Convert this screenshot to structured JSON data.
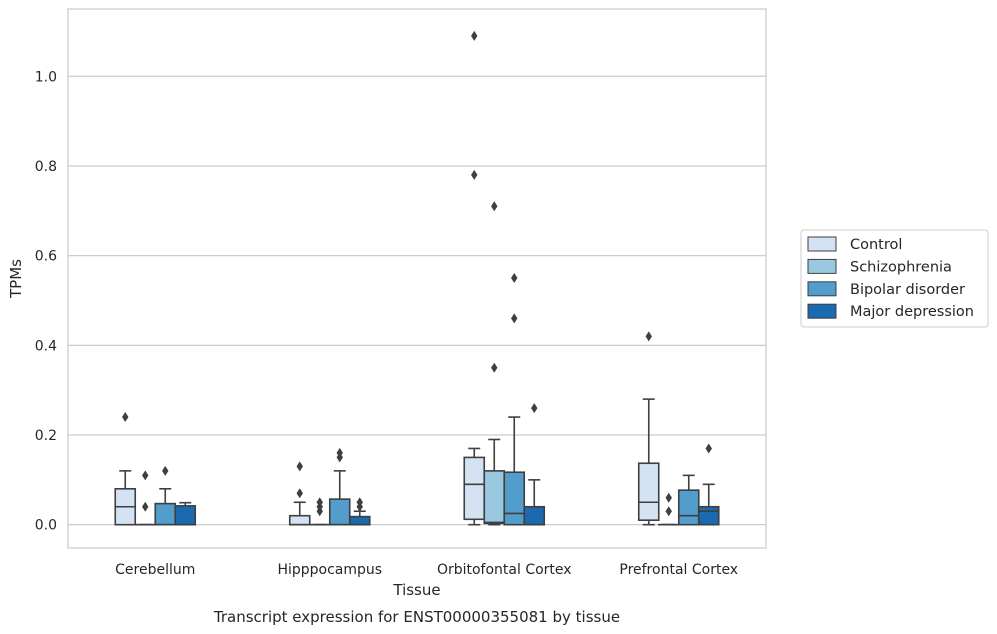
{
  "chart_data": {
    "type": "box",
    "title": "",
    "caption": "Transcript expression for ENST00000355081 by tissue",
    "xlabel": "Tissue",
    "ylabel": "TPMs",
    "ylim": [
      -0.052,
      1.15
    ],
    "yticks": [
      0.0,
      0.2,
      0.4,
      0.6,
      0.8,
      1.0
    ],
    "ytick_labels": [
      "0.0",
      "0.2",
      "0.4",
      "0.6",
      "0.8",
      "1.0"
    ],
    "grid": "horizontal",
    "legend_position": "right",
    "categories": [
      "Cerebellum",
      "Hipppocampus",
      "Orbitofontal Cortex",
      "Prefrontal Cortex"
    ],
    "series": [
      {
        "name": "Control",
        "color": "#d3e3f3",
        "boxes": [
          {
            "q1": 0.0,
            "median": 0.04,
            "q3": 0.08,
            "whislo": 0.0,
            "whishi": 0.12,
            "fliers": [
              0.24
            ]
          },
          {
            "q1": 0.0,
            "median": 0.0,
            "q3": 0.02,
            "whislo": 0.0,
            "whishi": 0.05,
            "fliers": [
              0.07,
              0.13
            ]
          },
          {
            "q1": 0.012,
            "median": 0.09,
            "q3": 0.15,
            "whislo": 0.0,
            "whishi": 0.17,
            "fliers": [
              0.78,
              1.09
            ]
          },
          {
            "q1": 0.01,
            "median": 0.05,
            "q3": 0.137,
            "whislo": 0.0,
            "whishi": 0.28,
            "fliers": [
              0.42
            ]
          }
        ]
      },
      {
        "name": "Schizophrenia",
        "color": "#9ac8e0",
        "boxes": [
          {
            "q1": 0.0,
            "median": 0.0,
            "q3": 0.0,
            "whislo": 0.0,
            "whishi": 0.0,
            "fliers": [
              0.04,
              0.11
            ]
          },
          {
            "q1": 0.0,
            "median": 0.0,
            "q3": 0.0,
            "whislo": 0.0,
            "whishi": 0.0,
            "fliers": [
              0.03,
              0.04,
              0.05
            ]
          },
          {
            "q1": 0.003,
            "median": 0.005,
            "q3": 0.12,
            "whislo": 0.0,
            "whishi": 0.19,
            "fliers": [
              0.35,
              0.71
            ]
          },
          {
            "q1": 0.0,
            "median": 0.0,
            "q3": 0.0,
            "whislo": 0.0,
            "whishi": 0.0,
            "fliers": [
              0.03,
              0.06
            ]
          }
        ]
      },
      {
        "name": "Bipolar disorder",
        "color": "#529dcc",
        "boxes": [
          {
            "q1": 0.0,
            "median": 0.0,
            "q3": 0.047,
            "whislo": 0.0,
            "whishi": 0.08,
            "fliers": [
              0.12
            ]
          },
          {
            "q1": 0.0,
            "median": 0.0,
            "q3": 0.057,
            "whislo": 0.0,
            "whishi": 0.12,
            "fliers": [
              0.15,
              0.16
            ]
          },
          {
            "q1": 0.0,
            "median": 0.025,
            "q3": 0.117,
            "whislo": 0.0,
            "whishi": 0.24,
            "fliers": [
              0.46,
              0.55
            ]
          },
          {
            "q1": 0.0,
            "median": 0.02,
            "q3": 0.077,
            "whislo": 0.0,
            "whishi": 0.11,
            "fliers": []
          }
        ]
      },
      {
        "name": "Major depression",
        "color": "#1b69af",
        "boxes": [
          {
            "q1": 0.0,
            "median": 0.0,
            "q3": 0.042,
            "whislo": 0.0,
            "whishi": 0.049,
            "fliers": []
          },
          {
            "q1": 0.0,
            "median": 0.0,
            "q3": 0.018,
            "whislo": 0.0,
            "whishi": 0.03,
            "fliers": [
              0.04,
              0.05
            ]
          },
          {
            "q1": 0.0,
            "median": 0.0,
            "q3": 0.04,
            "whislo": 0.0,
            "whishi": 0.1,
            "fliers": [
              0.26
            ]
          },
          {
            "q1": 0.0,
            "median": 0.03,
            "q3": 0.04,
            "whislo": 0.0,
            "whishi": 0.09,
            "fliers": [
              0.17
            ]
          }
        ]
      }
    ]
  }
}
